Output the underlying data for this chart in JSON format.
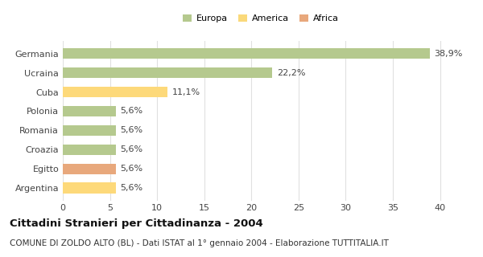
{
  "categories": [
    "Germania",
    "Ucraina",
    "Cuba",
    "Polonia",
    "Romania",
    "Croazia",
    "Egitto",
    "Argentina"
  ],
  "values": [
    38.9,
    22.2,
    11.1,
    5.6,
    5.6,
    5.6,
    5.6,
    5.6
  ],
  "labels": [
    "38,9%",
    "22,2%",
    "11,1%",
    "5,6%",
    "5,6%",
    "5,6%",
    "5,6%",
    "5,6%"
  ],
  "colors": [
    "#b5c98e",
    "#b5c98e",
    "#fdd97a",
    "#b5c98e",
    "#b5c98e",
    "#b5c98e",
    "#e8a87c",
    "#fdd97a"
  ],
  "legend_labels": [
    "Europa",
    "America",
    "Africa"
  ],
  "legend_colors": [
    "#b5c98e",
    "#fad97a",
    "#e8a87c"
  ],
  "title": "Cittadini Stranieri per Cittadinanza - 2004",
  "subtitle": "COMUNE DI ZOLDO ALTO (BL) - Dati ISTAT al 1° gennaio 2004 - Elaborazione TUTTITALIA.IT",
  "xlim": [
    0,
    42
  ],
  "xticks": [
    0,
    5,
    10,
    15,
    20,
    25,
    30,
    35,
    40
  ],
  "background_color": "#ffffff",
  "grid_color": "#e0e0e0",
  "bar_height": 0.55,
  "label_fontsize": 8,
  "tick_fontsize": 8,
  "title_fontsize": 9.5,
  "subtitle_fontsize": 7.5
}
